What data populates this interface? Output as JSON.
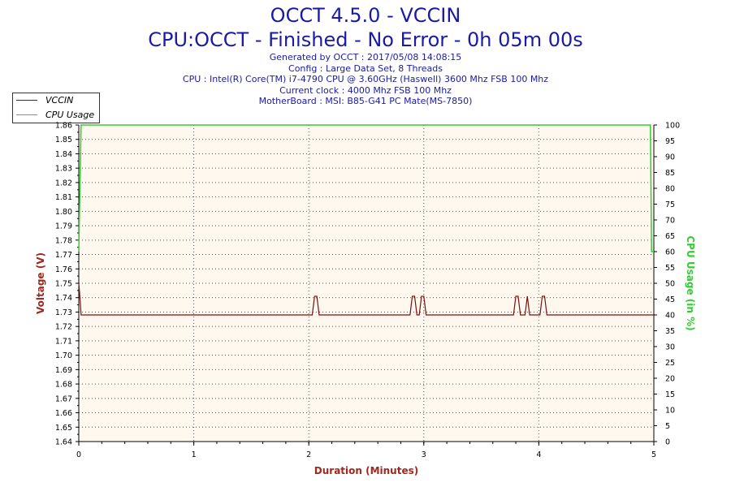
{
  "header": {
    "title": "OCCT 4.5.0 - VCCIN",
    "subtitle": "CPU:OCCT - Finished - No Error - 0h 05m 00s",
    "info_lines": [
      "Generated by OCCT : 2017/05/08 14:08:15",
      "Config : Large Data Set, 8 Threads",
      "CPU : Intel(R) Core(TM) i7-4790 CPU @ 3.60GHz (Haswell) 3600 Mhz FSB 100 Mhz",
      "Current clock : 4000 Mhz FSB 100 Mhz",
      "MotherBoard : MSI: B85-G41 PC Mate(MS-7850)"
    ]
  },
  "colors": {
    "title": "#1a1aa6",
    "vccin": "#7a1010",
    "cpu_usage": "#33cc33",
    "plot_bg": "#fff8ee",
    "axis_label": "#a0281e"
  },
  "chart_data": {
    "type": "line",
    "xlabel": "Duration (Minutes)",
    "ylabel": "Voltage (V)",
    "y2label": "CPU Usage (in %)",
    "xlim": [
      0,
      5
    ],
    "ylim": [
      1.64,
      1.86
    ],
    "y2lim": [
      0,
      100
    ],
    "x_ticks": [
      "0",
      "1",
      "2",
      "3",
      "4",
      "5"
    ],
    "y_ticks": [
      "1.64",
      "1.65",
      "1.66",
      "1.67",
      "1.68",
      "1.69",
      "1.70",
      "1.71",
      "1.72",
      "1.73",
      "1.74",
      "1.75",
      "1.76",
      "1.77",
      "1.78",
      "1.79",
      "1.80",
      "1.81",
      "1.82",
      "1.83",
      "1.84",
      "1.85",
      "1.86"
    ],
    "y2_ticks": [
      "0",
      "5",
      "10",
      "15",
      "20",
      "25",
      "30",
      "35",
      "40",
      "45",
      "50",
      "55",
      "60",
      "65",
      "70",
      "75",
      "80",
      "85",
      "90",
      "95",
      "100"
    ],
    "grid": true,
    "legend_position": "top-left",
    "series": [
      {
        "name": "VCCIN",
        "axis": "left",
        "x": [
          0,
          0.01,
          0.02,
          0.03,
          0.05,
          2.03,
          2.05,
          2.07,
          2.09,
          2.88,
          2.9,
          2.92,
          2.94,
          2.96,
          2.98,
          3.0,
          3.02,
          3.78,
          3.8,
          3.82,
          3.84,
          3.88,
          3.9,
          3.92,
          4.01,
          4.03,
          4.05,
          4.07,
          5.0
        ],
        "values": [
          1.75,
          1.74,
          1.728,
          1.728,
          1.728,
          1.728,
          1.741,
          1.741,
          1.728,
          1.728,
          1.741,
          1.741,
          1.728,
          1.728,
          1.741,
          1.741,
          1.728,
          1.728,
          1.741,
          1.741,
          1.728,
          1.728,
          1.741,
          1.728,
          1.728,
          1.741,
          1.741,
          1.728,
          1.728
        ]
      },
      {
        "name": "CPU Usage",
        "axis": "right",
        "x": [
          0,
          0.02,
          0.04,
          4.97,
          4.98,
          5.0
        ],
        "values": [
          60,
          100,
          100,
          100,
          60,
          60
        ]
      }
    ]
  }
}
